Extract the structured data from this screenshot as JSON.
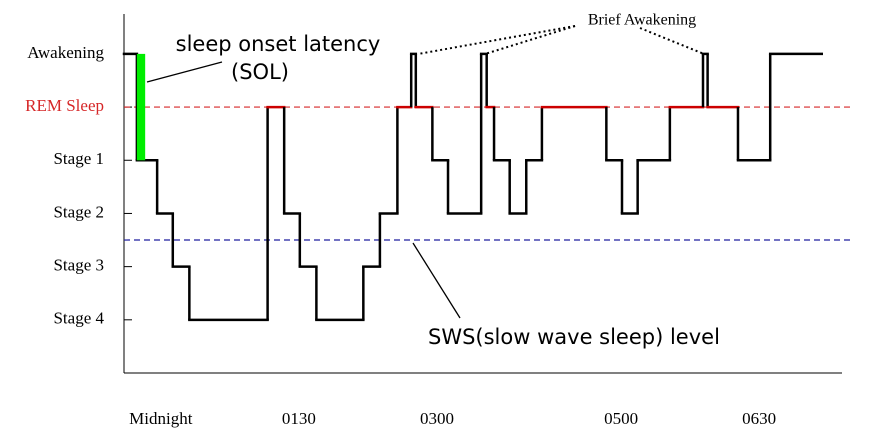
{
  "chart_data": {
    "type": "step",
    "x": [
      -0.4,
      -0.26,
      -0.04,
      0.13,
      0.31,
      1.16,
      1.34,
      1.51,
      1.69,
      2.2,
      2.38,
      2.57,
      2.72,
      2.77,
      2.95,
      3.12,
      3.48,
      3.54,
      3.62,
      3.79,
      3.97,
      4.14,
      4.84,
      5.01,
      5.18,
      5.53,
      5.89,
      5.94,
      6.27,
      6.62,
      7.18
    ],
    "values": [
      5,
      3,
      2,
      1,
      0,
      4,
      2,
      1,
      0,
      1,
      2,
      4,
      5,
      4,
      3,
      2,
      5,
      4,
      3,
      2,
      3,
      4,
      3,
      2,
      3,
      4,
      5,
      4,
      3,
      5,
      5
    ],
    "color": "#000000",
    "rem_color": "#cc0000",
    "xlim": [
      -0.4,
      7.4
    ],
    "ylim": [
      -1,
      5.75
    ],
    "xticks": [
      {
        "value": 0,
        "label": "Midnight"
      },
      {
        "value": 1.5,
        "label": "0130"
      },
      {
        "value": 3,
        "label": "0300"
      },
      {
        "value": 5,
        "label": "0500"
      },
      {
        "value": 6.5,
        "label": "0630"
      }
    ],
    "yticks": [
      {
        "value": 5,
        "label": "Awakening"
      },
      {
        "value": 4,
        "label": "REM Sleep"
      },
      {
        "value": 3,
        "label": "Stage 1"
      },
      {
        "value": 2,
        "label": "Stage 2"
      },
      {
        "value": 1,
        "label": "Stage 3"
      },
      {
        "value": 0,
        "label": "Stage 4"
      }
    ],
    "reference_lines": [
      {
        "value": 4,
        "color": "#d62728"
      },
      {
        "value": 1.5,
        "color": "#1f1f9f"
      }
    ],
    "sol_bar": {
      "x": [
        -0.26,
        -0.17
      ],
      "range": [
        3,
        5
      ],
      "color": "#00ee00"
    },
    "annotations": {
      "sol": [
        "sleep onset latency",
        "(SOL)"
      ],
      "brief": "Brief Awakening",
      "sws": "SWS(slow wave sleep) level"
    }
  }
}
